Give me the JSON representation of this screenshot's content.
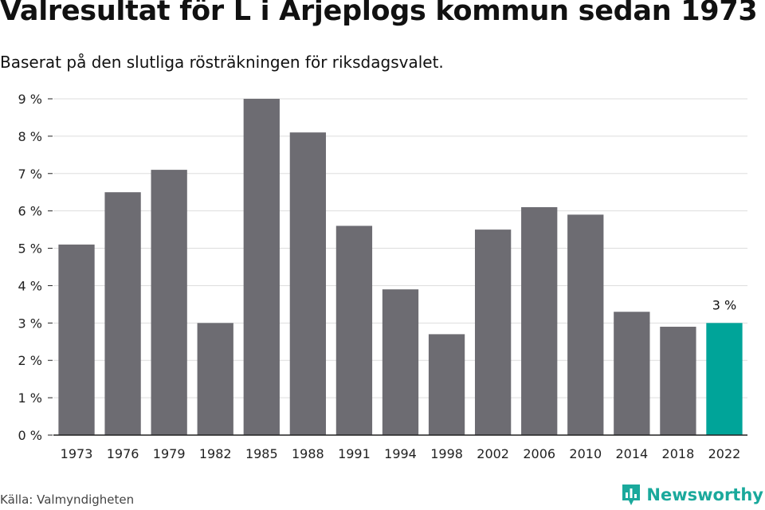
{
  "title": "Valresultat för L i Arjeplogs kommun sedan 1973",
  "subtitle": "Baserat på den slutliga rösträkningen för riksdagsvalet.",
  "source": "Källa: Valmyndigheten",
  "brand": {
    "name": "Newsworthy",
    "icon": "newsworthy-logo-icon",
    "color": "#1aa99c"
  },
  "colors": {
    "bar": "#6d6c72",
    "highlight": "#00a499",
    "grid": "#dddddd",
    "axis": "#222222"
  },
  "chart_data": {
    "type": "bar",
    "title": "Valresultat för L i Arjeplogs kommun sedan 1973",
    "subtitle": "Baserat på den slutliga rösträkningen för riksdagsvalet.",
    "xlabel": "",
    "ylabel": "",
    "categories": [
      "1973",
      "1976",
      "1979",
      "1982",
      "1985",
      "1988",
      "1991",
      "1994",
      "1998",
      "2002",
      "2006",
      "2010",
      "2014",
      "2018",
      "2022"
    ],
    "values": [
      5.1,
      6.5,
      7.1,
      3.0,
      9.0,
      8.1,
      5.6,
      3.9,
      2.7,
      5.5,
      6.1,
      5.9,
      3.3,
      2.9,
      3.0
    ],
    "ylim": [
      0,
      9
    ],
    "yticks": [
      0,
      1,
      2,
      3,
      4,
      5,
      6,
      7,
      8,
      9
    ],
    "ytick_labels": [
      "0 %",
      "1 %",
      "2 %",
      "3 %",
      "4 %",
      "5 %",
      "6 %",
      "7 %",
      "8 %",
      "9 %"
    ],
    "grid": true,
    "highlight_index": 14,
    "annotations": [
      {
        "category": "2022",
        "text": "3 %"
      }
    ]
  }
}
